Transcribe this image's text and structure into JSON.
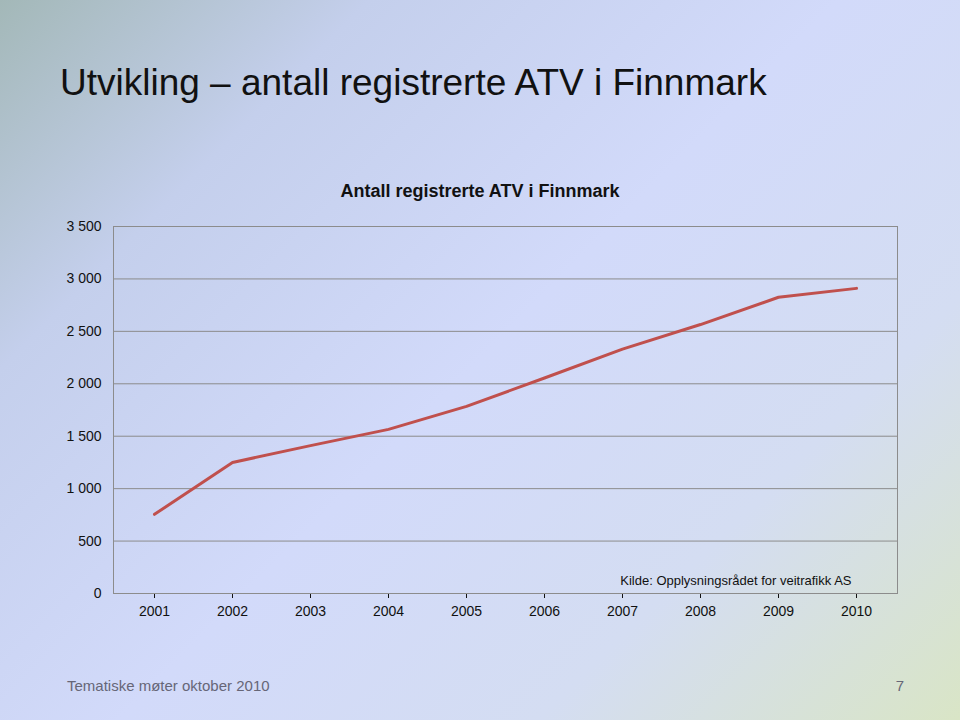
{
  "slide_title": "Utvikling – antall registrerte ATV i Finnmark",
  "footer": "Tematiske møter oktober 2010",
  "page_number": 7,
  "chart_data": {
    "type": "line",
    "title": "Antall registrerte ATV i Finnmark",
    "categories": [
      "2001",
      "2002",
      "2003",
      "2004",
      "2005",
      "2006",
      "2007",
      "2008",
      "2009",
      "2010"
    ],
    "values": [
      755,
      1250,
      1410,
      1565,
      1785,
      2055,
      2330,
      2565,
      2825,
      2910
    ],
    "color": "#c0504d",
    "ylim": [
      0,
      3500
    ],
    "yticks": [
      0,
      500,
      {
        "value": 1000,
        "label": "1 000"
      },
      {
        "value": 1500,
        "label": "1 500"
      },
      {
        "value": 2000,
        "label": "2 000"
      },
      {
        "value": 2500,
        "label": "2 500"
      },
      {
        "value": 3000,
        "label": "3 000"
      },
      {
        "value": 3500,
        "label": "3 500"
      }
    ],
    "grid": true,
    "annotation": "Kilde: Opplysningsrådet for veitrafikk AS"
  }
}
